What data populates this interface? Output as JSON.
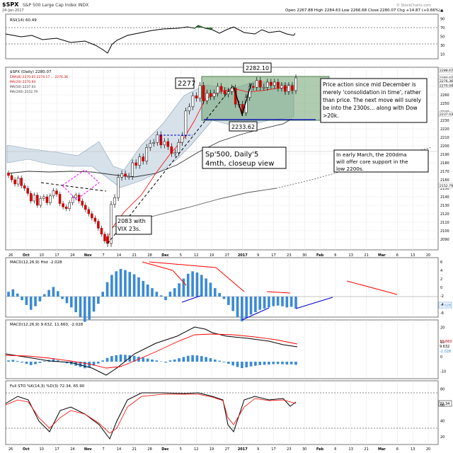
{
  "header": {
    "symbol": "$SPX",
    "name": "S&P 500 Large Cap Index",
    "exchange": "INDX",
    "date": "24-Jan-2017",
    "quote": "Open 2267.88 High 2284.63 Low 2266.68 Close 2280.07 Chg +14.87 (+0.66%)▲",
    "watermark": "© StockCharts.com"
  },
  "colors": {
    "price_up": "#000000",
    "ema": "#ff0000",
    "ma50": "#000000",
    "ma200": "#555555",
    "macd_hist": "#3a8ad4",
    "bb": "#8aa0b8",
    "consolidation_box": "#6fa26f",
    "support": "#0000cc",
    "flag": "#ff00ff"
  },
  "panels": {
    "rsi": {
      "label": "RSI(14) 60.49",
      "ticks": [
        "90",
        "70",
        "50",
        "30",
        "10"
      ],
      "value": "60.49",
      "levels": [
        70,
        30
      ]
    },
    "price": {
      "legend": [
        "$SPX (Daily) 2280.07",
        "EMA(8) 2270.65 2274.17 ... 2276.36",
        "MA(20) 2270.94",
        "MA(50) 2237.03",
        "MA(200) 2152.79"
      ],
      "ticks": [
        "2280",
        "2270",
        "2260",
        "2250",
        "2240",
        "2230",
        "2220",
        "2210",
        "2200",
        "2190",
        "2180",
        "2170",
        "2160",
        "2150",
        "2140",
        "2130",
        "2120",
        "2110",
        "2100",
        "2090"
      ],
      "tick_labels_right": [
        "2288.67",
        "2280.07",
        "2276.36",
        "2270.94",
        "2237.03",
        "2152.79"
      ],
      "xlabels": [
        "26",
        "Oct",
        "10",
        "17",
        "24",
        "Nov",
        "7",
        "14",
        "21",
        "28",
        "Dec",
        "5",
        "12",
        "19",
        "27",
        "2017",
        "9",
        "17",
        "23",
        "30",
        "Feb",
        "6",
        "13",
        "21",
        "Mar",
        "6",
        "13",
        "20"
      ]
    },
    "macd1": {
      "label": "MACD(12,26,9) Hist -2.028",
      "ticks": [
        "6",
        "4",
        "2",
        "0",
        "-2",
        "-4",
        "-6"
      ],
      "value_label": "-2.028"
    },
    "macd2": {
      "label": "MACD(12,26,9) 9.632, 11.660, -2.028",
      "ticks": [
        "20",
        "10",
        "0",
        "-10"
      ],
      "value_labels": [
        "11.660",
        "9.632",
        "-2.028"
      ]
    },
    "sto": {
      "label": "Full STO %K(14,3) %D(3) 72.34, 65.90",
      "ticks": [
        "80",
        "60",
        "40",
        "20"
      ],
      "value_label": "72.34"
    }
  },
  "annotations": {
    "a2277": "2277",
    "a2282": "2282.10",
    "a2233": "2233.62",
    "a2083": [
      "2083 with",
      "VIX 23s."
    ],
    "spx_daily": [
      "Sp'500, Daily'5",
      "4mth, closeup view"
    ],
    "price_action": [
      "Price action since mid December is",
      "merely 'consolidation in time', rather",
      "than price. The next move will surely",
      "be into the 2300s... along with Dow",
      ">20k."
    ],
    "early_march": [
      "In early March, the 200dma",
      "will offer core support in the",
      "low 2200s."
    ]
  },
  "chart_data": {
    "type": "candlestick",
    "title": "$SPX S&P 500 Large Cap Index INDX",
    "period": "Daily",
    "x_dates": [
      "2016-11-04",
      "2016-11-07",
      "2016-11-08",
      "2016-11-09",
      "2016-11-10",
      "2016-11-11",
      "2016-11-14",
      "2016-11-15",
      "2016-11-16",
      "2016-11-17",
      "2016-11-18",
      "2016-11-21",
      "2016-11-22",
      "2016-11-23",
      "2016-11-25",
      "2016-11-28",
      "2016-11-29",
      "2016-11-30",
      "2016-12-01",
      "2016-12-02",
      "2016-12-05",
      "2016-12-06",
      "2016-12-07",
      "2016-12-08",
      "2016-12-09",
      "2016-12-12",
      "2016-12-13",
      "2016-12-14",
      "2016-12-15",
      "2016-12-16",
      "2016-12-19",
      "2016-12-20",
      "2016-12-21",
      "2016-12-22",
      "2016-12-23",
      "2016-12-27",
      "2016-12-28",
      "2016-12-29",
      "2016-12-30",
      "2017-01-03",
      "2017-01-04",
      "2017-01-05",
      "2017-01-06",
      "2017-01-09",
      "2017-01-10",
      "2017-01-11",
      "2017-01-12",
      "2017-01-13",
      "2017-01-17",
      "2017-01-18",
      "2017-01-19",
      "2017-01-20",
      "2017-01-23",
      "2017-01-24"
    ],
    "close": [
      2085,
      2131,
      2139,
      2163,
      2167,
      2164,
      2164,
      2180,
      2177,
      2187,
      2182,
      2198,
      2203,
      2204,
      2213,
      2201,
      2205,
      2199,
      2191,
      2192,
      2204,
      2212,
      2241,
      2246,
      2259,
      2256,
      2271,
      2253,
      2262,
      2258,
      2262,
      2270,
      2265,
      2261,
      2264,
      2268,
      2249,
      2249,
      2239,
      2257,
      2270,
      2269,
      2277,
      2269,
      2269,
      2275,
      2271,
      2275,
      2268,
      2271,
      2264,
      2271,
      2265,
      2280
    ],
    "ylim": [
      2080,
      2290
    ],
    "moving_averages": {
      "MA(50)": 2237.03,
      "MA(200)": 2152.79,
      "MA(20)": 2270.94,
      "EMA(8)": 2276.36
    },
    "consolidation_range": [
      2233.62,
      2282.1
    ],
    "rsi": 60.49,
    "macd": {
      "macd": 9.632,
      "signal": 11.66,
      "hist": -2.028
    },
    "full_sto": {
      "k": 72.34,
      "d": 65.9
    }
  }
}
